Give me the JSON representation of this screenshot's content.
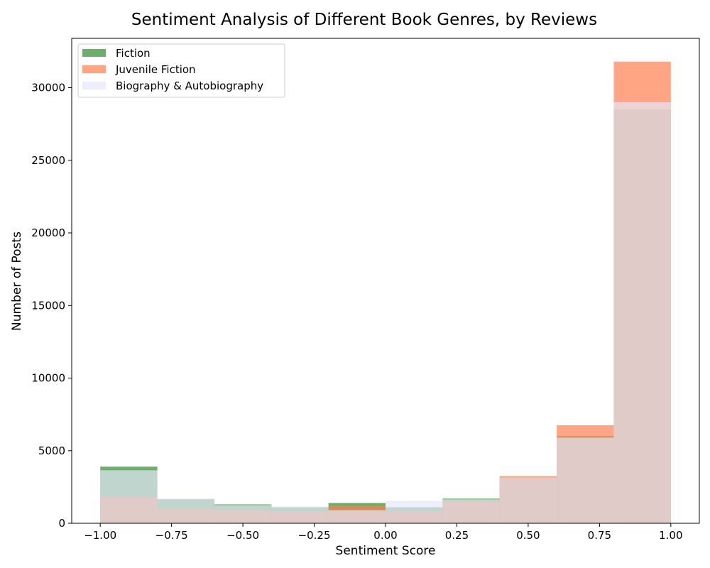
{
  "chart_data": {
    "type": "bar",
    "subtype": "overlaid-histogram",
    "title": "Sentiment Analysis of Different Book Genres, by Reviews",
    "xlabel": "Sentiment Score",
    "ylabel": "Number of Posts",
    "xlim": [
      -1.1,
      1.1
    ],
    "ylim": [
      0,
      33400
    ],
    "xticks": [
      -1.0,
      -0.75,
      -0.5,
      -0.25,
      0.0,
      0.25,
      0.5,
      0.75,
      1.0
    ],
    "xtick_labels": [
      "−1.00",
      "−0.75",
      "−0.50",
      "−0.25",
      "0.00",
      "0.25",
      "0.50",
      "0.75",
      "1.00"
    ],
    "yticks": [
      0,
      5000,
      10000,
      15000,
      20000,
      25000,
      30000
    ],
    "ytick_labels": [
      "0",
      "5000",
      "10000",
      "15000",
      "20000",
      "25000",
      "30000"
    ],
    "bin_edges": [
      -1.0,
      -0.8,
      -0.6,
      -0.4,
      -0.2,
      0.0,
      0.2,
      0.4,
      0.6,
      0.8,
      1.0
    ],
    "grid": false,
    "legend_position": "top-left",
    "series": [
      {
        "name": "Fiction",
        "color": "#2e8b2e",
        "alpha": 0.7,
        "values": [
          3900,
          1650,
          1300,
          1100,
          1400,
          1100,
          1700,
          3150,
          6000,
          28500
        ]
      },
      {
        "name": "Juvenile Fiction",
        "color": "#ff7f50",
        "alpha": 0.7,
        "values": [
          1850,
          1000,
          900,
          800,
          1200,
          800,
          1500,
          3250,
          6750,
          31800
        ]
      },
      {
        "name": "Biography & Autobiography",
        "color": "#e6e6fa",
        "alpha": 0.7,
        "values": [
          3650,
          1700,
          1250,
          1150,
          900,
          1550,
          1650,
          3150,
          5900,
          29000
        ]
      }
    ]
  }
}
